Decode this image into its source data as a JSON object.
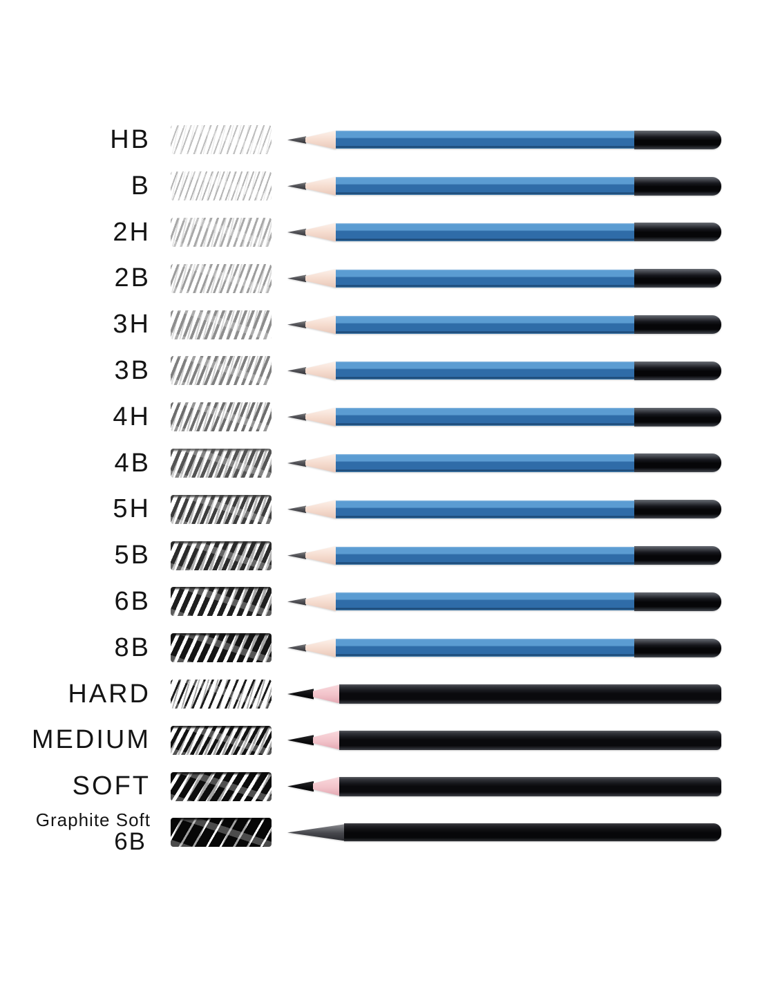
{
  "title": "pencil-grade-shading-chart",
  "colors": {
    "blue_hi": "#8fbce2",
    "blue_light": "#5b9cd2",
    "blue_mid": "#2f6ca8",
    "blue_deep": "#1d4a77",
    "blue_edge": "#4e8cbd",
    "cap_black": "#060608",
    "wood_light": "#fdf1ea",
    "wood": "#f5dccf",
    "wood_dark": "#e9c8b9",
    "wood_pink_light": "#f9d8dc",
    "wood_pink": "#f2c3ca",
    "wood_pink_dark": "#e4aab4",
    "charcoal_black": "#0a0a0d",
    "graphite_black": "#070709"
  },
  "rows": [
    {
      "label": "HB",
      "pencil": "blue",
      "swatch": {
        "color": "#bdbdbd",
        "stroke": 2,
        "gap": 7,
        "angle": 110
      }
    },
    {
      "label": "B",
      "pencil": "blue",
      "swatch": {
        "color": "#b4b4b4",
        "stroke": 2,
        "gap": 6,
        "angle": 110
      }
    },
    {
      "label": "2H",
      "pencil": "blue",
      "swatch": {
        "color": "#a9a9a9",
        "stroke": 3,
        "gap": 6,
        "angle": 110
      }
    },
    {
      "label": "2B",
      "pencil": "blue",
      "swatch": {
        "color": "#9d9d9d",
        "stroke": 3,
        "gap": 6,
        "angle": 111
      }
    },
    {
      "label": "3H",
      "pencil": "blue",
      "swatch": {
        "color": "#8e8e8e",
        "stroke": 4,
        "gap": 6,
        "angle": 111
      }
    },
    {
      "label": "3B",
      "pencil": "blue",
      "swatch": {
        "color": "#808080",
        "stroke": 4,
        "gap": 6,
        "angle": 112
      }
    },
    {
      "label": "4H",
      "pencil": "blue",
      "swatch": {
        "color": "#6d6d6d",
        "stroke": 4,
        "gap": 6,
        "angle": 112
      }
    },
    {
      "label": "4B",
      "pencil": "blue",
      "swatch": {
        "color": "#555555",
        "stroke": 5,
        "gap": 6,
        "angle": 113
      }
    },
    {
      "label": "5H",
      "pencil": "blue",
      "swatch": {
        "color": "#3e3e3e",
        "stroke": 5,
        "gap": 6,
        "angle": 113
      }
    },
    {
      "label": "5B",
      "pencil": "blue",
      "swatch": {
        "color": "#2b2b2b",
        "stroke": 6,
        "gap": 6,
        "angle": 114
      }
    },
    {
      "label": "6B",
      "pencil": "blue",
      "swatch": {
        "color": "#1f1f1f",
        "stroke": 7,
        "gap": 6,
        "angle": 114
      }
    },
    {
      "label": "8B",
      "pencil": "blue",
      "swatch": {
        "color": "#151515",
        "stroke": 8,
        "gap": 5,
        "angle": 115
      }
    },
    {
      "label": "HARD",
      "pencil": "charcoal",
      "swatch": {
        "color": "#1c1c1c",
        "stroke": 3,
        "gap": 8,
        "angle": 113
      }
    },
    {
      "label": "MEDIUM",
      "pencil": "charcoal",
      "swatch": {
        "color": "#131313",
        "stroke": 5,
        "gap": 6,
        "angle": 118
      }
    },
    {
      "label": "SOFT",
      "pencil": "charcoal",
      "swatch": {
        "color": "#0d0d0d",
        "stroke": 9,
        "gap": 5,
        "angle": 122
      }
    },
    {
      "label": "Graphite Soft",
      "sublabel": "6B",
      "pencil": "graphite",
      "swatch": {
        "color": "#070707",
        "stroke": 14,
        "gap": 3,
        "angle": 120
      }
    }
  ]
}
